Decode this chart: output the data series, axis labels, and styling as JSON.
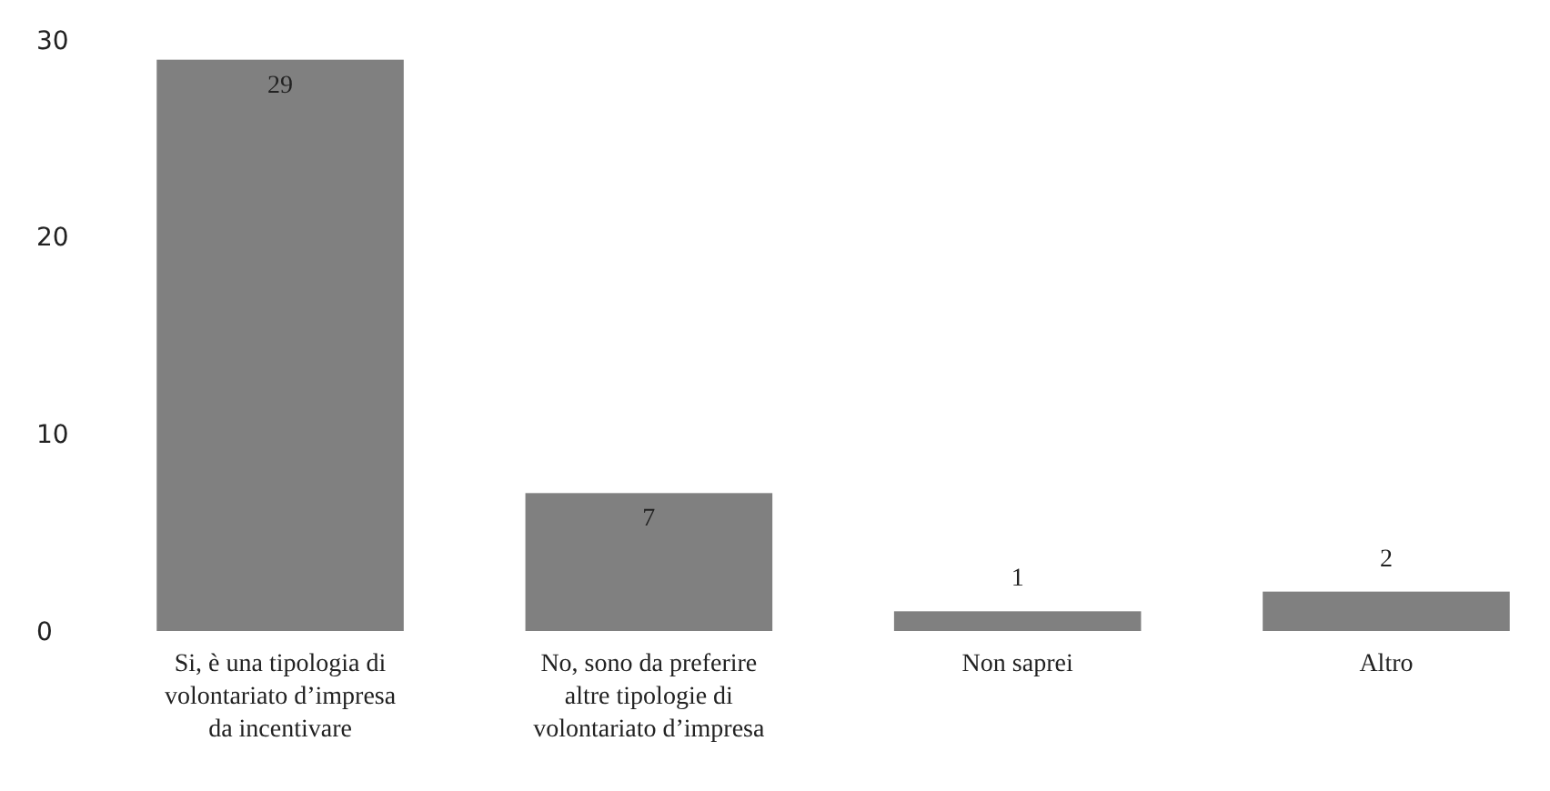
{
  "chart_data": {
    "type": "bar",
    "categories": [
      "Si, è una tipologia di volontariato d’impresa da incentivare",
      "No, sono da preferire altre tipologie di volontariato d’impresa",
      "Non saprei",
      "Altro"
    ],
    "values": [
      29,
      7,
      1,
      2
    ],
    "color": "#808080",
    "ylim": [
      0,
      30
    ],
    "yticks": [
      0,
      10,
      20,
      30
    ],
    "data_labels": true
  }
}
